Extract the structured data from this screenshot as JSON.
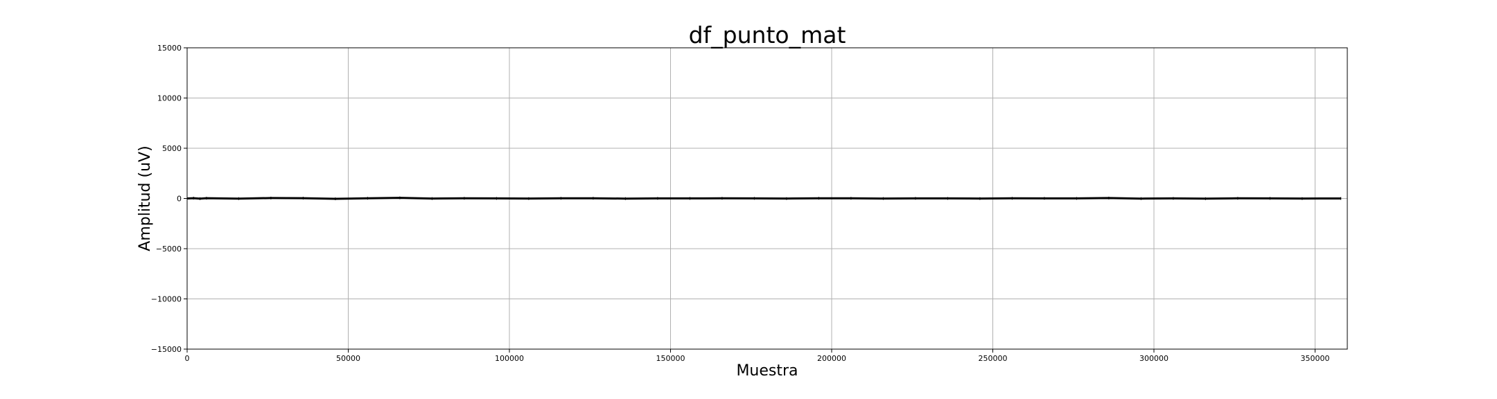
{
  "chart_data": {
    "type": "line",
    "title": "df_punto_mat",
    "xlabel": "Muestra",
    "ylabel": "Amplitud (uV)",
    "xlim": [
      0,
      360000
    ],
    "ylim": [
      -15000,
      15000
    ],
    "x_ticks": [
      0,
      50000,
      100000,
      150000,
      200000,
      250000,
      300000,
      350000
    ],
    "x_tick_labels": [
      "0",
      "50000",
      "100000",
      "150000",
      "200000",
      "250000",
      "300000",
      "350000"
    ],
    "y_ticks": [
      15000,
      10000,
      5000,
      0,
      -5000,
      -10000,
      -15000
    ],
    "y_tick_labels": [
      "15000",
      "10000",
      "5000",
      "0",
      "−5000",
      "−10000",
      "−15000"
    ],
    "grid": true,
    "line_color": "#000000",
    "series": [
      {
        "x": [
          0,
          2000,
          4000,
          6000,
          16000,
          26000,
          36000,
          46000,
          56000,
          66000,
          76000,
          86000,
          96000,
          106000,
          116000,
          126000,
          136000,
          146000,
          156000,
          166000,
          176000,
          186000,
          196000,
          206000,
          216000,
          226000,
          236000,
          246000,
          256000,
          266000,
          276000,
          286000,
          296000,
          306000,
          316000,
          326000,
          336000,
          346000,
          358000
        ],
        "y": [
          0,
          30,
          -20,
          25,
          -15,
          40,
          30,
          -35,
          20,
          60,
          -10,
          15,
          5,
          -10,
          15,
          20,
          -15,
          10,
          5,
          15,
          10,
          -10,
          20,
          15,
          -5,
          10,
          5,
          -10,
          15,
          10,
          5,
          40,
          -15,
          5,
          -20,
          15,
          10,
          -10,
          0
        ]
      }
    ]
  }
}
